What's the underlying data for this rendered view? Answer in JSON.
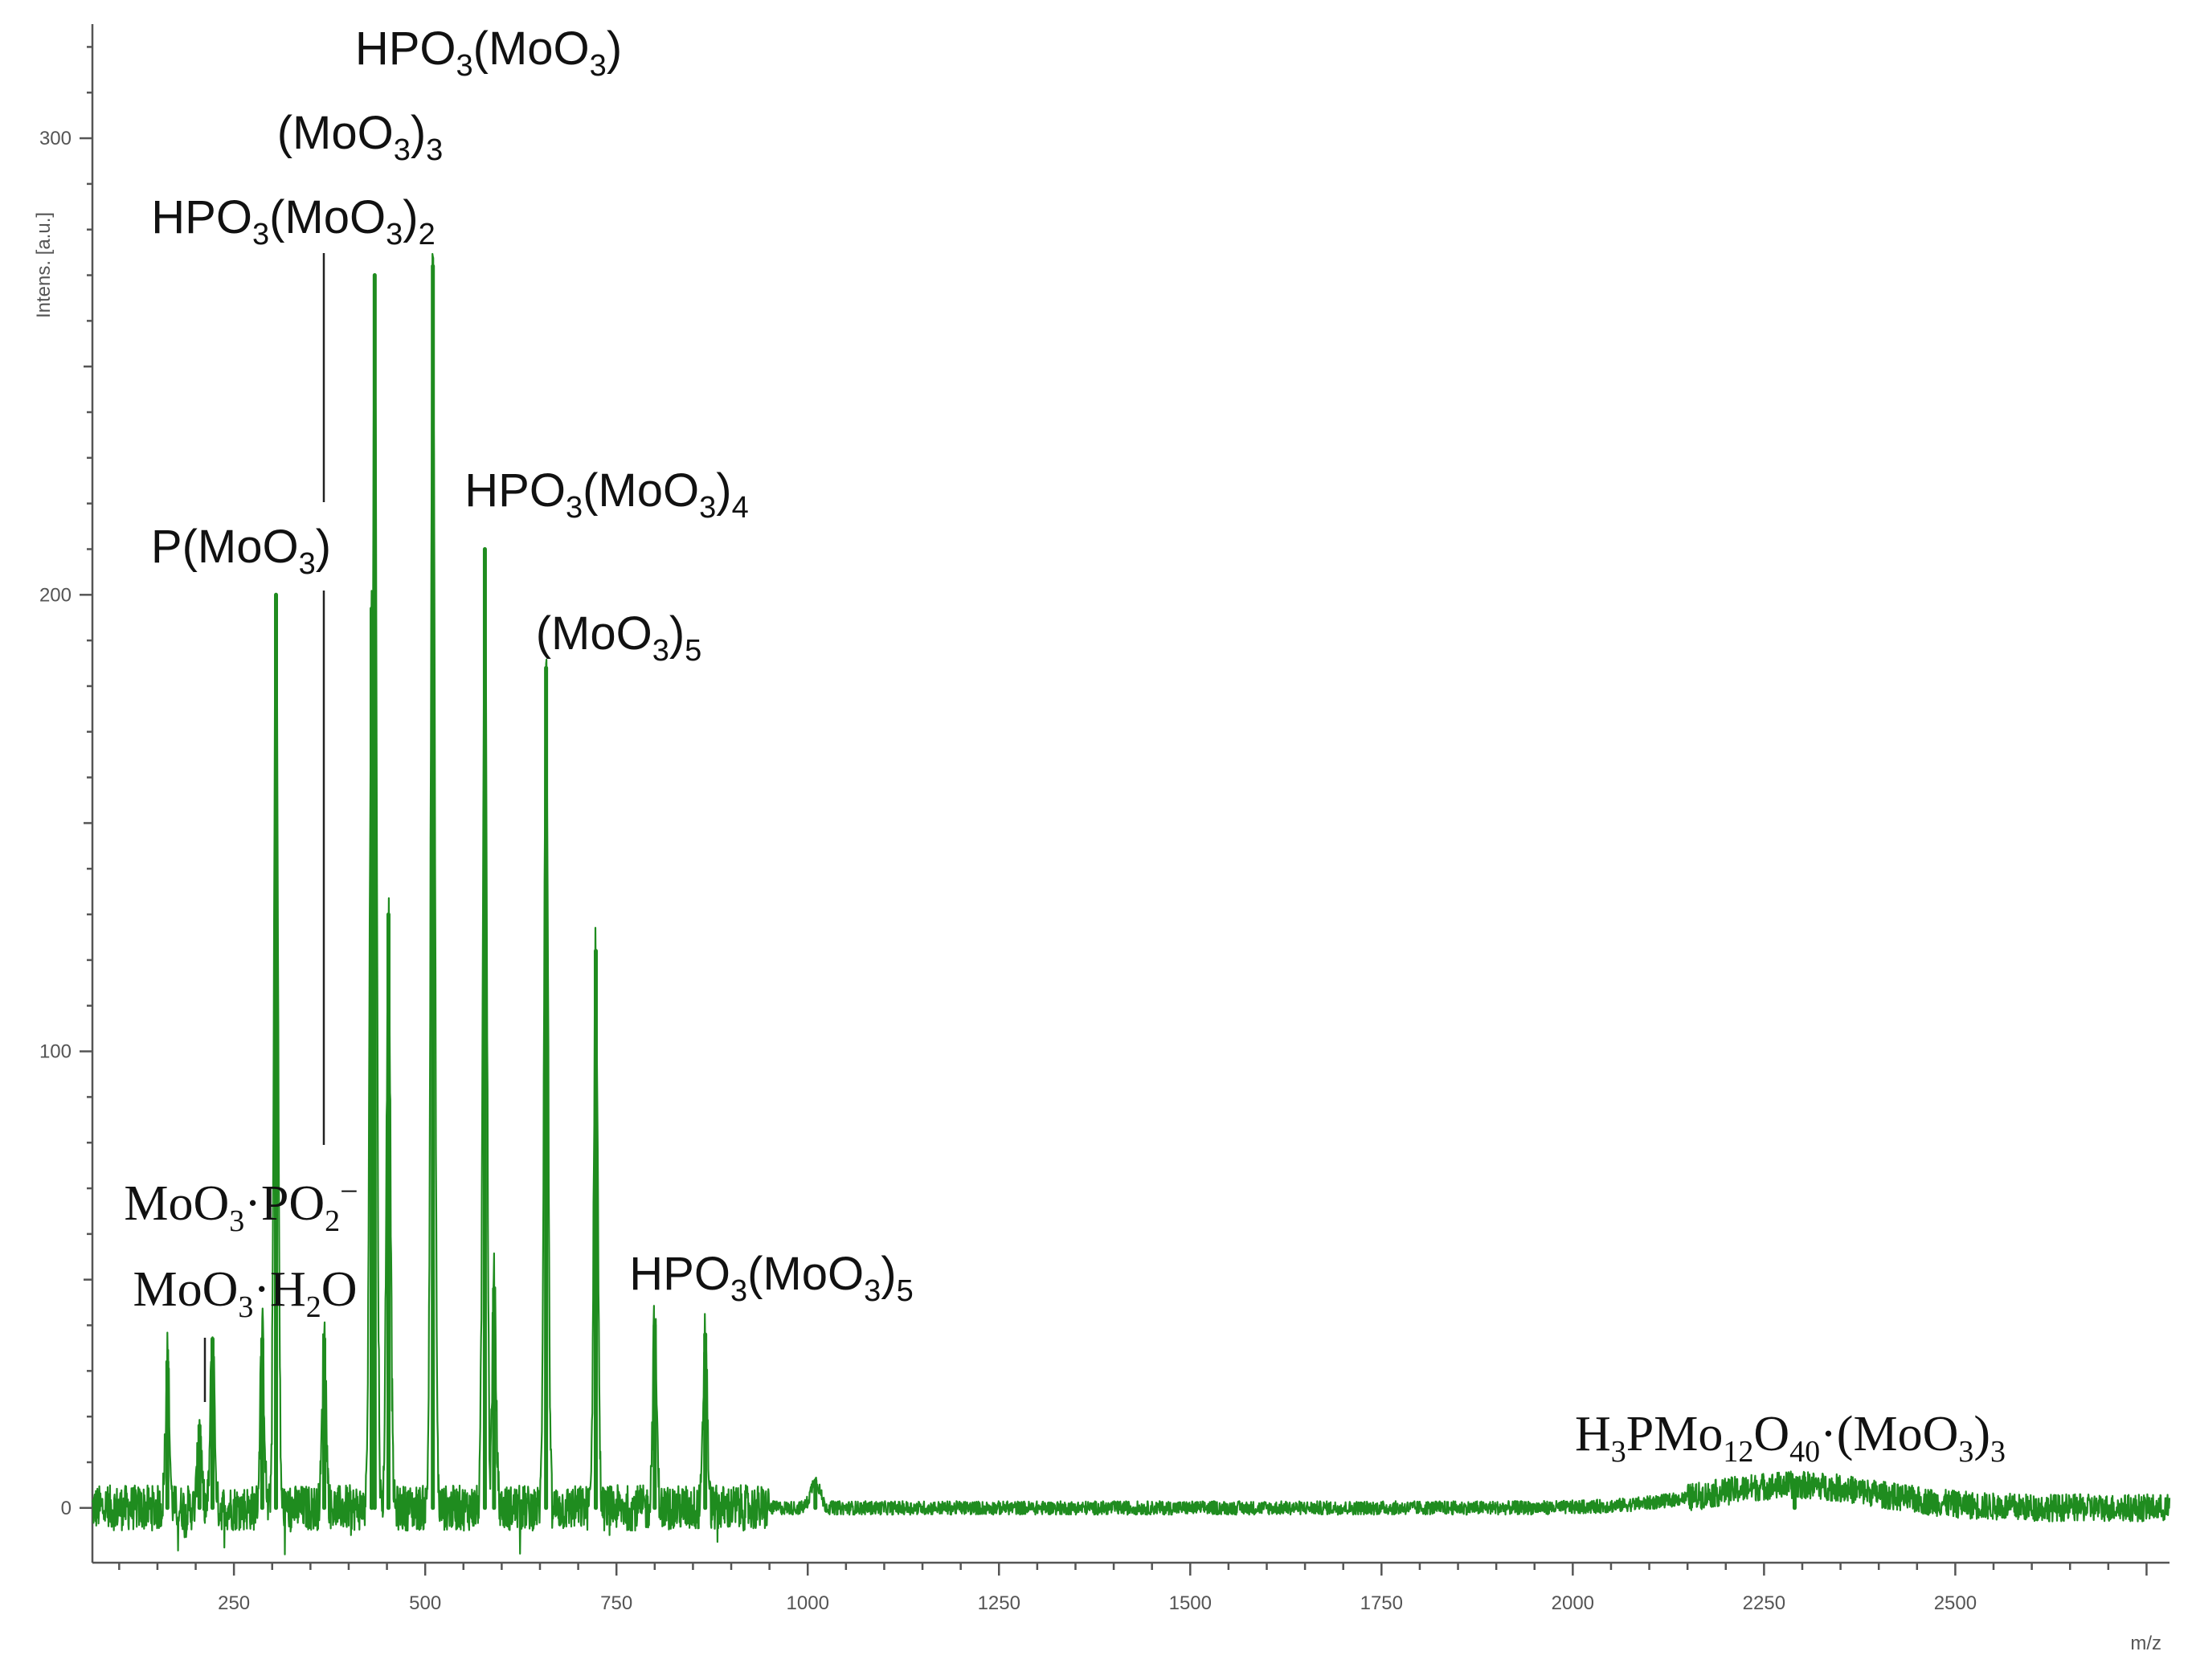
{
  "chart_data": {
    "type": "line",
    "ylabel": "Intens. [a.u.]",
    "xlabel": "m/z",
    "xlim": [
      65,
      2780
    ],
    "ylim": [
      -12,
      325
    ],
    "xticks": [
      250,
      500,
      750,
      1000,
      1250,
      1500,
      1750,
      2000,
      2250,
      2500
    ],
    "yticks": [
      0,
      100,
      200,
      300
    ],
    "grid": false,
    "series": [
      {
        "color": "#1f8c1f",
        "peaks": [
          {
            "x": 163,
            "y": 32
          },
          {
            "x": 205,
            "y": 18
          },
          {
            "x": 222,
            "y": 37
          },
          {
            "x": 287,
            "y": 37
          },
          {
            "x": 305,
            "y": 200
          },
          {
            "x": 368,
            "y": 37
          },
          {
            "x": 430,
            "y": 197
          },
          {
            "x": 434,
            "y": 270
          },
          {
            "x": 452,
            "y": 130
          },
          {
            "x": 510,
            "y": 272
          },
          {
            "x": 578,
            "y": 210
          },
          {
            "x": 590,
            "y": 48
          },
          {
            "x": 658,
            "y": 184
          },
          {
            "x": 723,
            "y": 122
          },
          {
            "x": 800,
            "y": 40
          },
          {
            "x": 866,
            "y": 38
          },
          {
            "x": 1010,
            "y": 6
          },
          {
            "x": 2290,
            "y": 5
          }
        ]
      }
    ],
    "annotations": [
      {
        "id": "moo3-h2o",
        "parts": [
          [
            "MoO",
            ""
          ],
          [
            "3",
            "sub"
          ],
          [
            "·H",
            ""
          ],
          [
            "2",
            "sub"
          ],
          [
            "O",
            ""
          ]
        ],
        "x": 207
      },
      {
        "id": "moo3-po2",
        "parts": [
          [
            "MoO",
            ""
          ],
          [
            "3",
            "sub"
          ],
          [
            "·PO",
            ""
          ],
          [
            "2",
            "sub"
          ],
          [
            "−",
            "sup"
          ]
        ],
        "x": 222
      },
      {
        "id": "p-moo3",
        "parts": [
          [
            "P(MoO",
            ""
          ],
          [
            "3",
            "sub"
          ],
          [
            ")",
            ""
          ]
        ],
        "x": 305
      },
      {
        "id": "hpo3-moo3-2",
        "parts": [
          [
            "HPO",
            ""
          ],
          [
            "3",
            "sub"
          ],
          [
            "(MoO",
            ""
          ],
          [
            "3",
            "sub"
          ],
          [
            ")",
            ""
          ],
          [
            "2",
            "sub"
          ]
        ],
        "x": 368
      },
      {
        "id": "moo3-3",
        "parts": [
          [
            "(MoO",
            ""
          ],
          [
            "3",
            "sub"
          ],
          [
            ")",
            ""
          ],
          [
            "3",
            "sub"
          ]
        ],
        "x": 434
      },
      {
        "id": "hpo3-moo3",
        "parts": [
          [
            "HPO",
            ""
          ],
          [
            "3",
            "sub"
          ],
          [
            "(MoO",
            ""
          ],
          [
            "3",
            "sub"
          ],
          [
            ")",
            ""
          ]
        ],
        "x": 510
      },
      {
        "id": "hpo3-moo3-4",
        "parts": [
          [
            "HPO",
            ""
          ],
          [
            "3",
            "sub"
          ],
          [
            "(MoO",
            ""
          ],
          [
            "3",
            "sub"
          ],
          [
            ")",
            ""
          ],
          [
            "4",
            "sub"
          ]
        ],
        "x": 578
      },
      {
        "id": "moo3-5",
        "parts": [
          [
            "(MoO",
            ""
          ],
          [
            "3",
            "sub"
          ],
          [
            ")",
            ""
          ],
          [
            "5",
            "sub"
          ]
        ],
        "x": 658
      },
      {
        "id": "hpo3-moo3-5",
        "parts": [
          [
            "HPO",
            ""
          ],
          [
            "3",
            "sub"
          ],
          [
            "(MoO",
            ""
          ],
          [
            "3",
            "sub"
          ],
          [
            ")",
            ""
          ],
          [
            "5",
            "sub"
          ]
        ],
        "x": 800
      },
      {
        "id": "h3pmo12o40-moo3-3",
        "parts": [
          [
            "H",
            ""
          ],
          [
            "3",
            "sub"
          ],
          [
            "PMo",
            ""
          ],
          [
            "12",
            "sub"
          ],
          [
            "O",
            ""
          ],
          [
            "40",
            "sub"
          ],
          [
            "·(MoO",
            ""
          ],
          [
            "3",
            "sub"
          ],
          [
            ")",
            ""
          ],
          [
            "3",
            "sub"
          ]
        ],
        "x": 2290
      }
    ]
  }
}
